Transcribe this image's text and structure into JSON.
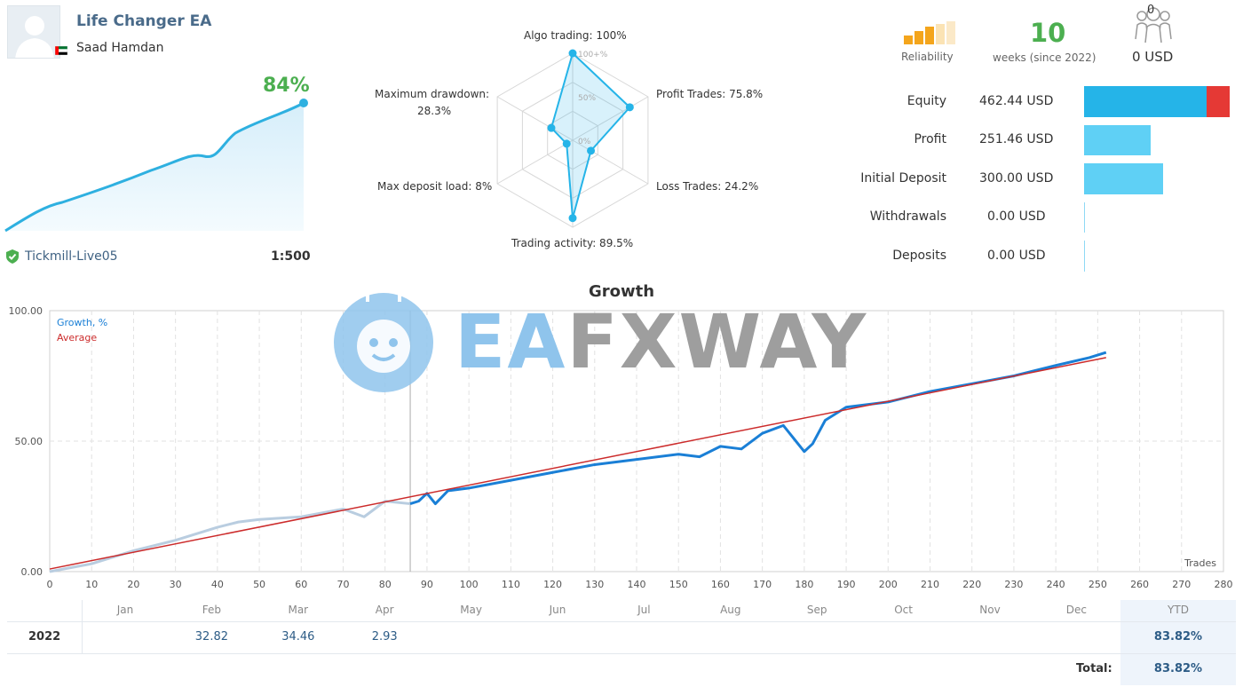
{
  "profile": {
    "title": "Life Changer EA",
    "author": "Saad Hamdan",
    "growth_pct": "84%",
    "broker": "Tickmill-Live05",
    "leverage": "1:500"
  },
  "radar": {
    "center_ticks": [
      "100+%",
      "50%",
      "0%"
    ],
    "axes": [
      {
        "label": "Algo trading: 100%",
        "value": 100
      },
      {
        "label": "Profit Trades: 75.8%",
        "value": 75.8
      },
      {
        "label": "Loss Trades: 24.2%",
        "value": 24.2
      },
      {
        "label": "Trading activity: 89.5%",
        "value": 89.5
      },
      {
        "label": "Max deposit load: 8%",
        "value": 8
      },
      {
        "label": "Maximum drawdown:",
        "label2": "28.3%",
        "value": 28.3
      }
    ]
  },
  "summary": {
    "reliability_label": "Reliability",
    "weeks": "10",
    "weeks_label": "weeks (since 2022)",
    "subscribers": "0",
    "subscribers_usd": "0 USD"
  },
  "stats": [
    {
      "label": "Equity",
      "value": "462.44 USD"
    },
    {
      "label": "Profit",
      "value": "251.46 USD"
    },
    {
      "label": "Initial Deposit",
      "value": "300.00 USD"
    },
    {
      "label": "Withdrawals",
      "value": "0.00 USD"
    },
    {
      "label": "Deposits",
      "value": "0.00 USD"
    }
  ],
  "colors": {
    "accent_blue": "#25b4e8",
    "light_blue": "#5fd0f5",
    "loss_red": "#e53935",
    "green": "#4caf50",
    "growth_line": "#1a7fd6",
    "average_line": "#cc2b2b"
  },
  "watermark": {
    "part1": "EA",
    "part2": "FXWAY"
  },
  "chart_data": {
    "type": "line",
    "title": "Growth",
    "legend": [
      "Growth, %",
      "Average"
    ],
    "xlabel": "Trades",
    "xlim": [
      0,
      280
    ],
    "ylim": [
      0,
      100
    ],
    "x_ticks": [
      0,
      10,
      20,
      30,
      40,
      50,
      60,
      70,
      80,
      90,
      100,
      110,
      120,
      130,
      140,
      150,
      160,
      170,
      180,
      190,
      200,
      210,
      220,
      230,
      240,
      250,
      260,
      270,
      280
    ],
    "y_ticks": [
      "0.00",
      "50.00",
      "100.00"
    ],
    "series": [
      {
        "name": "Growth, %",
        "x": [
          0,
          10,
          20,
          30,
          40,
          45,
          50,
          60,
          70,
          75,
          80,
          86,
          88,
          90,
          92,
          95,
          100,
          110,
          120,
          130,
          140,
          150,
          155,
          160,
          165,
          170,
          175,
          178,
          180,
          182,
          185,
          190,
          200,
          210,
          220,
          230,
          240,
          248,
          252
        ],
        "y": [
          0,
          3,
          8,
          12,
          17,
          19,
          20,
          21,
          24,
          21,
          27,
          26,
          27,
          30,
          26,
          31,
          32,
          35,
          38,
          41,
          43,
          45,
          44,
          48,
          47,
          53,
          56,
          50,
          46,
          49,
          58,
          63,
          65,
          69,
          72,
          75,
          79,
          82,
          84
        ]
      },
      {
        "name": "Average",
        "x": [
          0,
          252
        ],
        "y": [
          1,
          82
        ]
      }
    ]
  },
  "monthly": {
    "months": [
      "Jan",
      "Feb",
      "Mar",
      "Apr",
      "May",
      "Jun",
      "Jul",
      "Aug",
      "Sep",
      "Oct",
      "Nov",
      "Dec"
    ],
    "ytd_label": "YTD",
    "year": "2022",
    "values": [
      "",
      "32.82",
      "34.46",
      "2.93",
      "",
      "",
      "",
      "",
      "",
      "",
      "",
      ""
    ],
    "ytd": "83.82%",
    "total_label": "Total:",
    "total": "83.82%"
  }
}
